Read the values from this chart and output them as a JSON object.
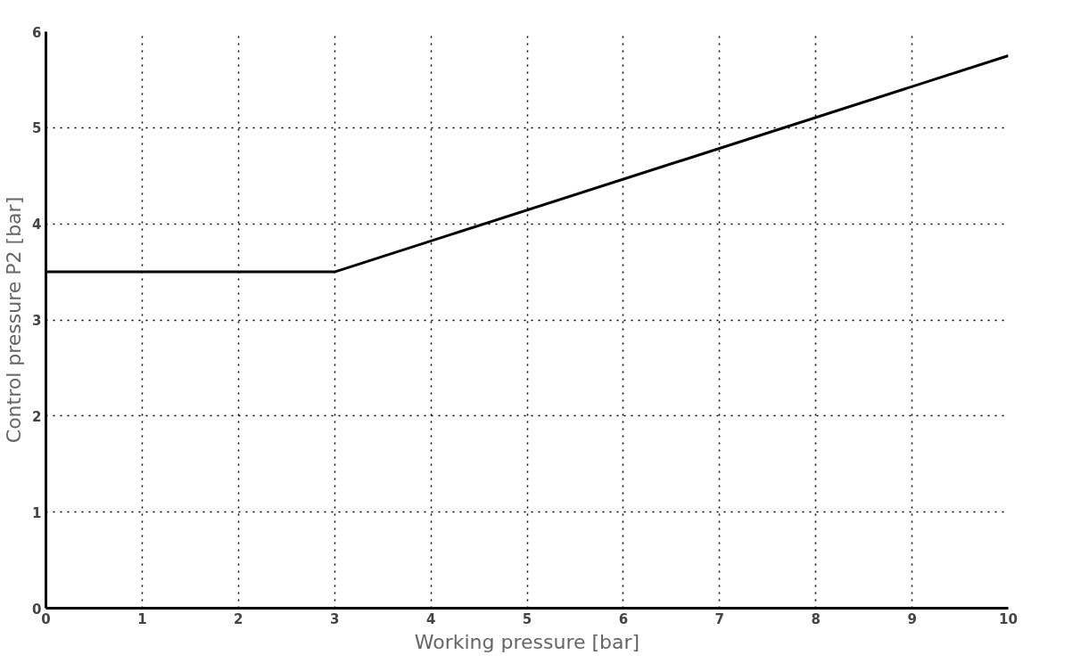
{
  "chart_data": {
    "type": "line",
    "xlabel": "Working pressure [bar]",
    "ylabel": "Control pressure P2 [bar]",
    "x": [
      0,
      3,
      10
    ],
    "series": [
      {
        "color": "#000000",
        "values": [
          3.5,
          3.5,
          5.75
        ]
      }
    ],
    "xlim": [
      0,
      10
    ],
    "ylim": [
      0,
      6
    ],
    "xticks": [
      0,
      1,
      2,
      3,
      4,
      5,
      6,
      7,
      8,
      9,
      10
    ],
    "yticks": [
      0,
      1,
      2,
      3,
      4,
      5,
      6
    ],
    "grid": true,
    "line_style": "solid",
    "marker": "none"
  }
}
